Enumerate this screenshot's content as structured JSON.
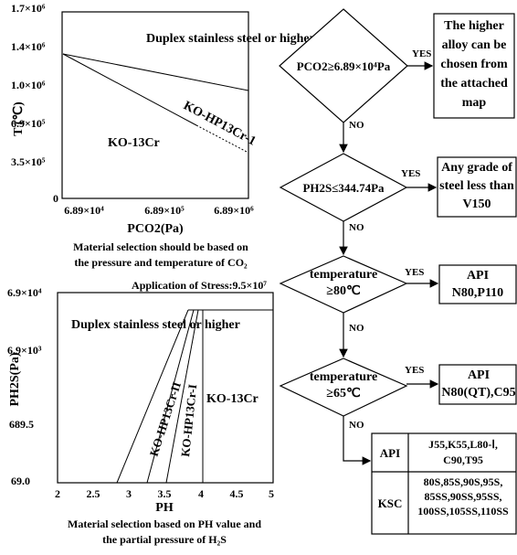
{
  "chart_data": [
    {
      "type": "area",
      "title": "",
      "ylabel": "T (℃)",
      "xlabel": "PCO2(Pa)",
      "x_scale": "log",
      "x_ticks": [
        "6.89×10⁴",
        "6.89×10⁵",
        "6.89×10⁶"
      ],
      "y_ticks": [
        "1.7×10⁶",
        "1.4×10⁶",
        "1.0×10⁶",
        "6.9×10⁵",
        "3.5×10⁵",
        "0"
      ],
      "regions": [
        "Duplex stainless steel or higher",
        "KO-HP13Cr-1",
        "KO-13Cr"
      ],
      "caption": [
        "Material selection should be based on",
        "the pressure and temperature of CO₂"
      ]
    },
    {
      "type": "area",
      "title": "",
      "annotation": "Application of Stress:9.5×10⁷",
      "ylabel": "PH2S(Pa)",
      "xlabel": "PH",
      "x_ticks": [
        "2",
        "2.5",
        "3",
        "3.5",
        "4",
        "4.5",
        "5"
      ],
      "xlim": [
        2,
        5
      ],
      "y_ticks": [
        "6.9×10⁴",
        "6.9×10³",
        "689.5",
        "69.0"
      ],
      "regions": [
        "Duplex stainless steel or higher",
        "KO-HP13Cr-II",
        "KO-HP13Cr-I",
        "KO-13Cr"
      ],
      "caption": [
        "Material selection based on PH value and",
        "the partial pressure of H₂S"
      ]
    }
  ],
  "flowchart": {
    "decisions": [
      "PCO2≥6.89×10⁴Pa",
      "PH2S≤344.74Pa",
      "temperature ≥80℃",
      "temperature ≥65℃"
    ],
    "yes_label": "YES",
    "no_label": "NO",
    "results": [
      "The higher alloy can be chosen from the attached map",
      "Any grade of steel less than V150",
      "API N80,P110",
      "API N80(QT),C95"
    ],
    "final_table": [
      {
        "label": "API",
        "value": "J55,K55,L80-Ⅰ, C90,T95"
      },
      {
        "label": "KSC",
        "value": "80S,85S,90S,95S, 85SS,90SS,95SS, 100SS,105SS,110SS"
      }
    ]
  }
}
